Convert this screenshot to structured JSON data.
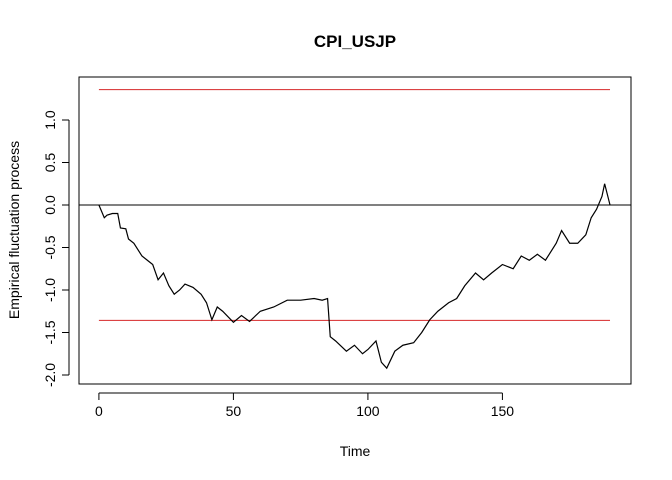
{
  "chart_data": {
    "type": "line",
    "title": "CPI_USJP",
    "xlabel": "Time",
    "ylabel": "Empirical fluctuation process",
    "x": [
      0,
      2,
      3,
      5,
      7,
      8,
      10,
      11,
      13,
      16,
      18,
      20,
      22,
      24,
      26,
      28,
      30,
      32,
      35,
      38,
      40,
      42,
      44,
      46,
      50,
      53,
      56,
      60,
      65,
      70,
      75,
      80,
      83,
      85,
      86,
      88,
      92,
      95,
      98,
      100,
      103,
      105,
      107,
      110,
      113,
      117,
      120,
      123,
      126,
      130,
      133,
      136,
      140,
      143,
      146,
      150,
      154,
      157,
      160,
      163,
      166,
      170,
      172,
      175,
      178,
      181,
      183,
      185,
      187,
      188,
      190
    ],
    "values": [
      0,
      -0.15,
      -0.12,
      -0.1,
      -0.1,
      -0.27,
      -0.28,
      -0.4,
      -0.45,
      -0.6,
      -0.65,
      -0.7,
      -0.88,
      -0.8,
      -0.95,
      -1.05,
      -1.0,
      -0.93,
      -0.97,
      -1.05,
      -1.15,
      -1.35,
      -1.2,
      -1.25,
      -1.38,
      -1.3,
      -1.37,
      -1.25,
      -1.2,
      -1.12,
      -1.12,
      -1.1,
      -1.12,
      -1.1,
      -1.55,
      -1.6,
      -1.72,
      -1.65,
      -1.75,
      -1.7,
      -1.6,
      -1.85,
      -1.92,
      -1.72,
      -1.65,
      -1.62,
      -1.5,
      -1.35,
      -1.25,
      -1.15,
      -1.1,
      -0.95,
      -0.8,
      -0.88,
      -0.8,
      -0.7,
      -0.75,
      -0.6,
      -0.65,
      -0.58,
      -0.65,
      -0.45,
      -0.3,
      -0.45,
      -0.45,
      -0.35,
      -0.15,
      -0.05,
      0.1,
      0.25,
      0.0
    ],
    "color": "#000000",
    "boundary": {
      "values": [
        1.358,
        -1.358
      ],
      "color": "#d62728",
      "xrange": [
        0,
        190
      ]
    },
    "hline": 0,
    "xlim": [
      -7.4,
      197.8
    ],
    "ylim": [
      -2.106,
      1.506
    ],
    "xticks": [
      0,
      50,
      100,
      150
    ],
    "yticks": [
      {
        "value": -2,
        "label": "-2.0"
      },
      -1.5,
      {
        "value": -1,
        "label": "-1.0"
      },
      -0.5,
      {
        "value": 0,
        "label": "0.0"
      },
      0.5,
      {
        "value": 1,
        "label": "1.0"
      }
    ]
  }
}
